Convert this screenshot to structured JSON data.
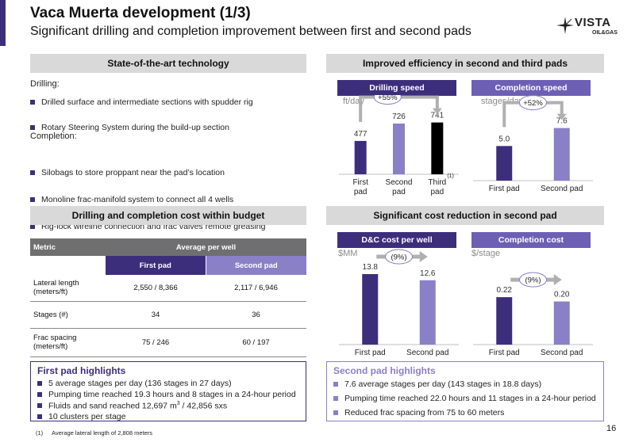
{
  "header": {
    "title": "Vaca Muerta development (1/3)",
    "subtitle": "Significant drilling and completion improvement between first and second pads",
    "logo_main": "VISTA",
    "logo_sub": "OIL&GAS"
  },
  "tech": {
    "header": "State-of-the-art technology",
    "drilling_label": "Drilling:",
    "drilling_items": [
      "Drilled surface and intermediate sections with spudder rig",
      "Rotary Steering System during the build-up section"
    ],
    "completion_label": "Completion:",
    "completion_items": [
      "Silobags to store proppant near the pad’s location",
      "Monoline frac-manifold system to connect all 4 wells",
      "Rig-lock wireline connection and frac valves remote greasing"
    ]
  },
  "efficiency": {
    "header": "Improved efficiency in second and third pads"
  },
  "cost_budget": {
    "header": "Drilling and completion cost within budget"
  },
  "cost_reduction": {
    "header": "Significant cost reduction in second pad"
  },
  "charts": [
    {
      "title": "Drilling speed",
      "unit": "ft/day",
      "categories": [
        "First\npad",
        "Second\npad",
        "Third\npad"
      ],
      "values": [
        477,
        726,
        741
      ],
      "value_labels": [
        "477",
        "726",
        "741"
      ],
      "colors": [
        "#3d2e7c",
        "#8a80c8",
        "#000000"
      ],
      "ymax": 850,
      "change": "+55%",
      "footnote": "(1)"
    },
    {
      "title": "Completion speed",
      "unit": "stages/day",
      "categories": [
        "First pad",
        "Second pad"
      ],
      "values": [
        5.0,
        7.6
      ],
      "value_labels": [
        "5.0",
        "7.6"
      ],
      "colors": [
        "#3d2e7c",
        "#8a80c8"
      ],
      "ymax": 9.5,
      "change": "+52%"
    },
    {
      "title": "D&C cost per well",
      "unit": "$MM",
      "categories": [
        "First pad",
        "Second pad"
      ],
      "values": [
        13.8,
        12.6
      ],
      "value_labels": [
        "13.8",
        "12.6"
      ],
      "colors": [
        "#3d2e7c",
        "#8a80c8"
      ],
      "ymax": 15.2,
      "change": "(9%)"
    },
    {
      "title": "Completion cost",
      "unit": "$/stage",
      "categories": [
        "First pad",
        "Second pad"
      ],
      "values": [
        0.22,
        0.2
      ],
      "value_labels": [
        "0.22",
        "0.20"
      ],
      "colors": [
        "#3d2e7c",
        "#8a80c8"
      ],
      "ymax": 0.36,
      "change": "(9%)"
    }
  ],
  "table": {
    "metric_header": "Metric",
    "group_header": "Average per well",
    "col1": "First pad",
    "col2": "Second pad",
    "rows": [
      {
        "metric": "Lateral length (meters/ft)",
        "first": "2,550 / 8,366",
        "second": "2,117 / 6,946"
      },
      {
        "metric": "Stages (#)",
        "first": "34",
        "second": "36"
      },
      {
        "metric": "Frac spacing (meters/ft)",
        "first": "75 / 246",
        "second": "60 / 197"
      }
    ]
  },
  "highlights": {
    "first_title": "First pad highlights",
    "first_items": [
      "5 average stages per day (136 stages in 27 days)",
      "Pumping time reached 19.3 hours and 8 stages in a 24-hour period",
      "Fluids and sand reached 12,697 m",
      "10 clusters per stage"
    ],
    "first_item3_sup": "3",
    "first_item3_tail": " / 42,856 sxs",
    "second_title": "Second pad highlights",
    "second_items": [
      "7.6 average stages per day (143 stages in 18.8 days)",
      "Pumping time reached 22.0 hours and 11 stages in a 24-hour period",
      "Reduced frac spacing from 75 to 60 meters"
    ]
  },
  "footnote": {
    "marker": "(1)",
    "text": "Average lateral length of 2,808 meters"
  },
  "page_number": "16"
}
